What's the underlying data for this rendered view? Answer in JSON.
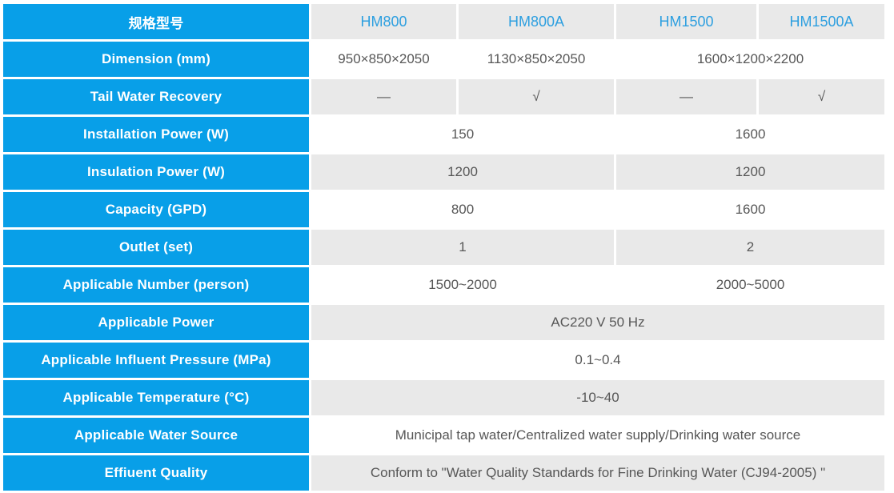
{
  "colors": {
    "accent_blue": "#089fe8",
    "model_text_blue": "#2d9fe0",
    "row_gray": "#e9e9e9",
    "value_text": "#575757",
    "label_text": "#ffffff"
  },
  "table": {
    "header": {
      "label": "规格型号",
      "columns": [
        "HM800",
        "HM800A",
        "HM1500",
        "HM1500A"
      ]
    },
    "rows": [
      {
        "label": "Dimension (mm)",
        "cells": [
          {
            "text": "950×850×2050",
            "span": 1
          },
          {
            "text": "1130×850×2050",
            "span": 1
          },
          {
            "text": "1600×1200×2200",
            "span": 2
          }
        ]
      },
      {
        "label": "Tail Water Recovery",
        "cells": [
          {
            "text": "—",
            "span": 1
          },
          {
            "text": "√",
            "span": 1
          },
          {
            "text": "—",
            "span": 1
          },
          {
            "text": "√",
            "span": 1
          }
        ]
      },
      {
        "label": "Installation Power (W)",
        "cells": [
          {
            "text": "150",
            "span": 2
          },
          {
            "text": "1600",
            "span": 2
          }
        ]
      },
      {
        "label": "Insulation Power (W)",
        "cells": [
          {
            "text": "1200",
            "span": 2
          },
          {
            "text": "1200",
            "span": 2
          }
        ]
      },
      {
        "label": "Capacity (GPD)",
        "cells": [
          {
            "text": "800",
            "span": 2
          },
          {
            "text": "1600",
            "span": 2
          }
        ]
      },
      {
        "label": "Outlet (set)",
        "cells": [
          {
            "text": "1",
            "span": 2
          },
          {
            "text": "2",
            "span": 2
          }
        ]
      },
      {
        "label": "Applicable Number (person)",
        "cells": [
          {
            "text": "1500~2000",
            "span": 2
          },
          {
            "text": "2000~5000",
            "span": 2
          }
        ]
      },
      {
        "label": "Applicable Power",
        "cells": [
          {
            "text": "AC220 V  50 Hz",
            "span": 4
          }
        ]
      },
      {
        "label": "Applicable Influent Pressure (MPa)",
        "cells": [
          {
            "text": "0.1~0.4",
            "span": 4
          }
        ]
      },
      {
        "label": "Applicable Temperature (°C)",
        "cells": [
          {
            "text": "-10~40",
            "span": 4
          }
        ]
      },
      {
        "label": "Applicable Water Source",
        "cells": [
          {
            "text": "Municipal tap water/Centralized water supply/Drinking water source",
            "span": 4
          }
        ]
      },
      {
        "label": "Effiuent Quality",
        "cells": [
          {
            "text": "Conform to \"Water Quality Standards for Fine Drinking Water (CJ94-2005)  \"",
            "span": 4
          }
        ]
      }
    ]
  }
}
